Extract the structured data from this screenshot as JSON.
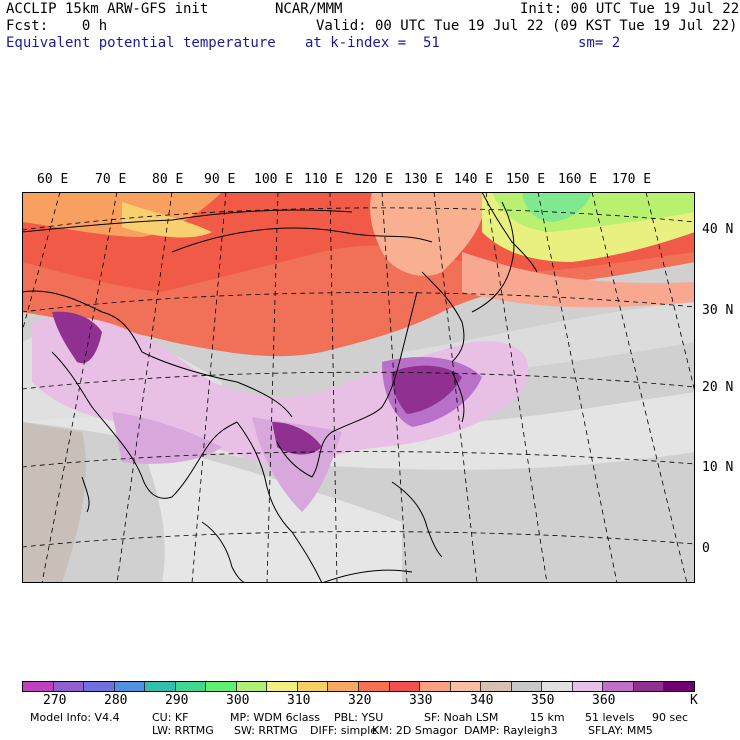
{
  "header": {
    "line1_left": "ACCLIP 15km ARW-GFS init",
    "line1_center": "NCAR/MMM",
    "line1_right": "Init: 00 UTC Tue 19 Jul 22",
    "line2_left": "Fcst:    0 h",
    "line2_right": "Valid: 00 UTC Tue 19 Jul 22 (09 KST Tue 19 Jul 22)",
    "field_name": "Equivalent potential temperature",
    "level": "at k-index =  51",
    "smoothing": "sm= 2"
  },
  "map": {
    "lon_labels": [
      "60 E",
      "70 E",
      "80 E",
      "90 E",
      "100 E",
      "110 E",
      "120 E",
      "130 E",
      "140 E",
      "150 E",
      "160 E",
      "170 E"
    ],
    "lat_labels": [
      "40 N",
      "30 N",
      "20 N",
      "10 N",
      "0"
    ]
  },
  "colorbar": {
    "colors": [
      "#c040c0",
      "#9060d0",
      "#7070e0",
      "#5090e0",
      "#30c0b0",
      "#40d890",
      "#60f070",
      "#b0f070",
      "#f0f080",
      "#f8d060",
      "#f8a860",
      "#f87050",
      "#f05050",
      "#f8a080",
      "#f8c0a0",
      "#d8c0b0",
      "#c8c8c8",
      "#e0e0e0",
      "#e8c0e8",
      "#c070c8",
      "#903090",
      "#700070"
    ],
    "tick_labels": [
      "270",
      "280",
      "290",
      "300",
      "310",
      "320",
      "330",
      "340",
      "350",
      "360"
    ],
    "units": "K"
  },
  "footer": {
    "line1": [
      "Model Info: V4.4",
      "CU: KF",
      "MP: WDM 6class",
      "PBL: YSU",
      "SF: Noah LSM",
      "15 km",
      "51 levels",
      "90 sec"
    ],
    "line2": [
      "LW: RRTMG",
      "SW: RRTMG",
      "DIFF: simple",
      "KM: 2D Smagor",
      "DAMP: Rayleigh3",
      "SFLAY: MM5"
    ]
  }
}
